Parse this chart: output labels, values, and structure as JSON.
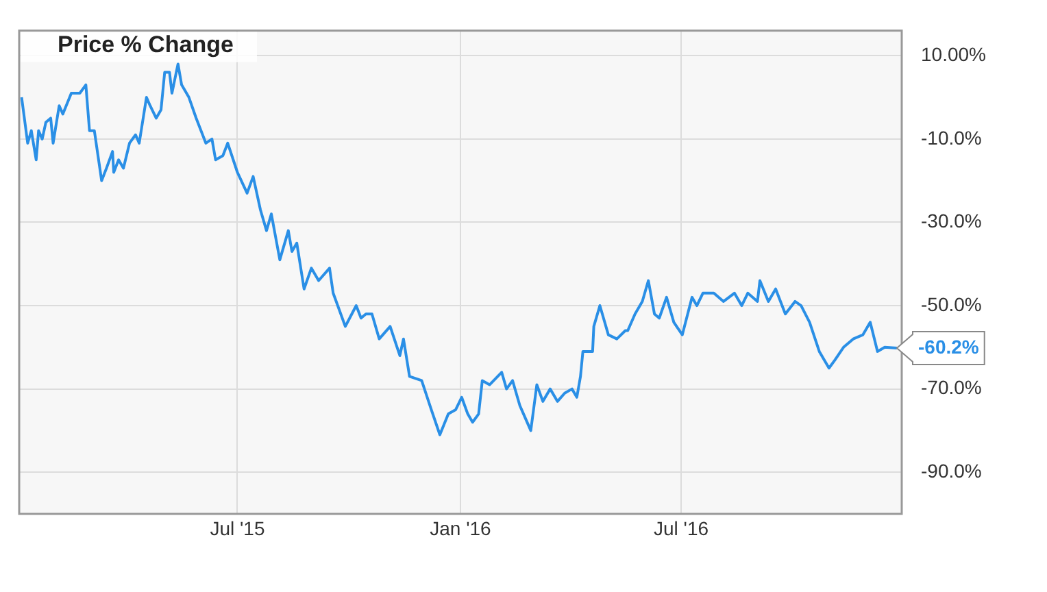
{
  "chart_data": {
    "type": "line",
    "title": "Price % Change",
    "x": [
      "2015-01-04",
      "2015-01-09",
      "2015-01-12",
      "2015-01-16",
      "2015-01-18",
      "2015-01-21",
      "2015-01-24",
      "2015-01-28",
      "2015-01-30",
      "2015-02-04",
      "2015-02-07",
      "2015-02-14",
      "2015-02-21",
      "2015-02-26",
      "2015-03-01",
      "2015-03-05",
      "2015-03-11",
      "2015-03-15",
      "2015-03-20",
      "2015-03-21",
      "2015-03-25",
      "2015-03-29",
      "2015-04-03",
      "2015-04-08",
      "2015-04-11",
      "2015-04-17",
      "2015-04-20",
      "2015-04-25",
      "2015-04-29",
      "2015-05-02",
      "2015-05-06",
      "2015-05-08",
      "2015-05-13",
      "2015-05-16",
      "2015-05-22",
      "2015-05-28",
      "2015-06-05",
      "2015-06-10",
      "2015-06-13",
      "2015-06-19",
      "2015-06-23",
      "2015-07-01",
      "2015-07-09",
      "2015-07-14",
      "2015-07-20",
      "2015-07-25",
      "2015-07-29",
      "2015-08-05",
      "2015-08-12",
      "2015-08-15",
      "2015-08-19",
      "2015-08-25",
      "2015-08-31",
      "2015-09-06",
      "2015-09-15",
      "2015-09-18",
      "2015-09-28",
      "2015-10-07",
      "2015-10-11",
      "2015-10-15",
      "2015-10-20",
      "2015-10-26",
      "2015-11-04",
      "2015-11-12",
      "2015-11-15",
      "2015-11-20",
      "2015-11-30",
      "2015-12-08",
      "2015-12-15",
      "2015-12-22",
      "2015-12-28",
      "2016-01-02",
      "2016-01-07",
      "2016-01-11",
      "2016-01-16",
      "2016-01-19",
      "2016-01-25",
      "2016-02-04",
      "2016-02-08",
      "2016-02-13",
      "2016-02-19",
      "2016-02-22",
      "2016-02-28",
      "2016-03-04",
      "2016-03-09",
      "2016-03-15",
      "2016-03-21",
      "2016-03-27",
      "2016-04-02",
      "2016-04-06",
      "2016-04-09",
      "2016-04-11",
      "2016-04-19",
      "2016-04-20",
      "2016-04-25",
      "2016-05-02",
      "2016-05-09",
      "2016-05-16",
      "2016-05-18",
      "2016-05-24",
      "2016-05-30",
      "2016-06-04",
      "2016-06-09",
      "2016-06-13",
      "2016-06-19",
      "2016-06-25",
      "2016-07-02",
      "2016-07-10",
      "2016-07-14",
      "2016-07-19",
      "2016-07-28",
      "2016-08-05",
      "2016-08-14",
      "2016-08-20",
      "2016-08-25",
      "2016-09-02",
      "2016-09-04",
      "2016-09-11",
      "2016-09-17",
      "2016-09-25",
      "2016-10-03",
      "2016-10-08",
      "2016-10-15",
      "2016-10-23",
      "2016-10-31",
      "2016-11-05",
      "2016-11-12",
      "2016-11-20",
      "2016-11-28",
      "2016-12-04",
      "2016-12-10",
      "2016-12-16",
      "2016-12-26"
    ],
    "series": [
      {
        "color": "#2a8fe6",
        "values": [
          0,
          -11,
          -8,
          -15,
          -8,
          -10,
          -6,
          -5,
          -11,
          -2,
          -4,
          1,
          1,
          3,
          -8,
          -8,
          -20,
          -17,
          -13,
          -18,
          -15,
          -17,
          -11,
          -9,
          -11,
          0,
          -2,
          -5,
          -3,
          6,
          6,
          1,
          8,
          3,
          0,
          -5,
          -11,
          -10,
          -15,
          -14,
          -11,
          -18,
          -23,
          -19,
          -27,
          -32,
          -28,
          -39,
          -32,
          -37,
          -35,
          -46,
          -41,
          -44,
          -41,
          -47,
          -55,
          -50,
          -53,
          -52,
          -52,
          -58,
          -55,
          -62,
          -58,
          -67,
          -68,
          -75,
          -81,
          -76,
          -75,
          -72,
          -76,
          -78,
          -76,
          -68,
          -69,
          -66,
          -70,
          -68,
          -74,
          -76,
          -80,
          -69,
          -73,
          -70,
          -73,
          -71,
          -70,
          -72,
          -67,
          -61,
          -61,
          -55,
          -50,
          -57,
          -58,
          -56,
          -56,
          -52,
          -49,
          -44,
          -52,
          -53,
          -48,
          -54,
          -57,
          -48,
          -50,
          -47,
          -47,
          -49,
          -47,
          -50,
          -47,
          -49,
          -44,
          -49,
          -46,
          -52,
          -49,
          -50,
          -54,
          -61,
          -65,
          -63,
          -60,
          -58,
          -57,
          -54,
          -61,
          -60,
          -60.2
        ]
      }
    ],
    "xlim": [
      "2015-01-02",
      "2016-12-30"
    ],
    "xticks": [
      {
        "value": "2015-07-01",
        "label": "Jul '15"
      },
      {
        "value": "2016-01-01",
        "label": "Jan '16"
      },
      {
        "value": "2016-07-01",
        "label": "Jul '16"
      }
    ],
    "ylim": [
      -100,
      16
    ],
    "yticks": [
      {
        "value": 10,
        "label": "10.00%"
      },
      {
        "value": -10,
        "label": "-10.0%"
      },
      {
        "value": -30,
        "label": "-30.0%"
      },
      {
        "value": -50,
        "label": "-50.0%"
      },
      {
        "value": -70,
        "label": "-70.0%"
      },
      {
        "value": -90,
        "label": "-90.0%"
      }
    ],
    "annotations": [
      {
        "text": "-60.2%",
        "x": "2016-12-26",
        "y": -60.2
      }
    ],
    "grid": true,
    "legend": false,
    "marker": "none",
    "line_style": "solid"
  }
}
